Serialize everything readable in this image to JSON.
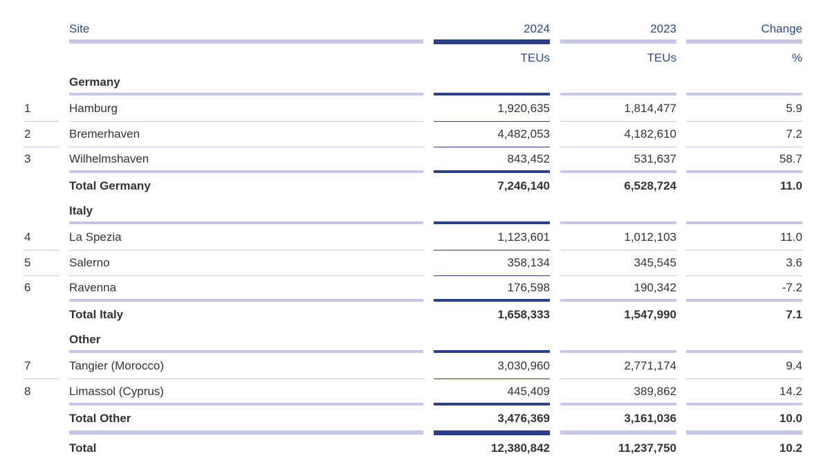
{
  "header": {
    "site": "Site",
    "col_2024": "2024",
    "col_2023": "2023",
    "change": "Change"
  },
  "units": {
    "col_2024": "TEUs",
    "col_2023": "TEUs",
    "change": "%"
  },
  "groups": [
    {
      "name": "Germany",
      "rows": [
        {
          "rank": "1",
          "site": "Hamburg",
          "v2024": "1,920,635",
          "v2023": "1,814,477",
          "change": "5.9"
        },
        {
          "rank": "2",
          "site": "Bremerhaven",
          "v2024": "4,482,053",
          "v2023": "4,182,610",
          "change": "7.2"
        },
        {
          "rank": "3",
          "site": "Wilhelmshaven",
          "v2024": "843,452",
          "v2023": "531,637",
          "change": "58.7"
        }
      ],
      "total": {
        "label": "Total Germany",
        "v2024": "7,246,140",
        "v2023": "6,528,724",
        "change": "11.0"
      }
    },
    {
      "name": "Italy",
      "rows": [
        {
          "rank": "4",
          "site": "La Spezia",
          "v2024": "1,123,601",
          "v2023": "1,012,103",
          "change": "11.0"
        },
        {
          "rank": "5",
          "site": "Salerno",
          "v2024": "358,134",
          "v2023": "345,545",
          "change": "3.6"
        },
        {
          "rank": "6",
          "site": "Ravenna",
          "v2024": "176,598",
          "v2023": "190,342",
          "change": "-7.2"
        }
      ],
      "total": {
        "label": "Total Italy",
        "v2024": "1,658,333",
        "v2023": "1,547,990",
        "change": "7.1"
      }
    },
    {
      "name": "Other",
      "rows": [
        {
          "rank": "7",
          "site": "Tangier (Morocco)",
          "v2024": "3,030,960",
          "v2023": "2,771,174",
          "change": "9.4"
        },
        {
          "rank": "8",
          "site": "Limassol (Cyprus)",
          "v2024": "445,409",
          "v2023": "389,862",
          "change": "14.2"
        }
      ],
      "total": {
        "label": "Total Other",
        "v2024": "3,476,369",
        "v2023": "3,161,036",
        "change": "10.0"
      }
    }
  ],
  "grand_total": {
    "label": "Total",
    "v2024": "12,380,842",
    "v2023": "11,237,750",
    "change": "10.2"
  }
}
